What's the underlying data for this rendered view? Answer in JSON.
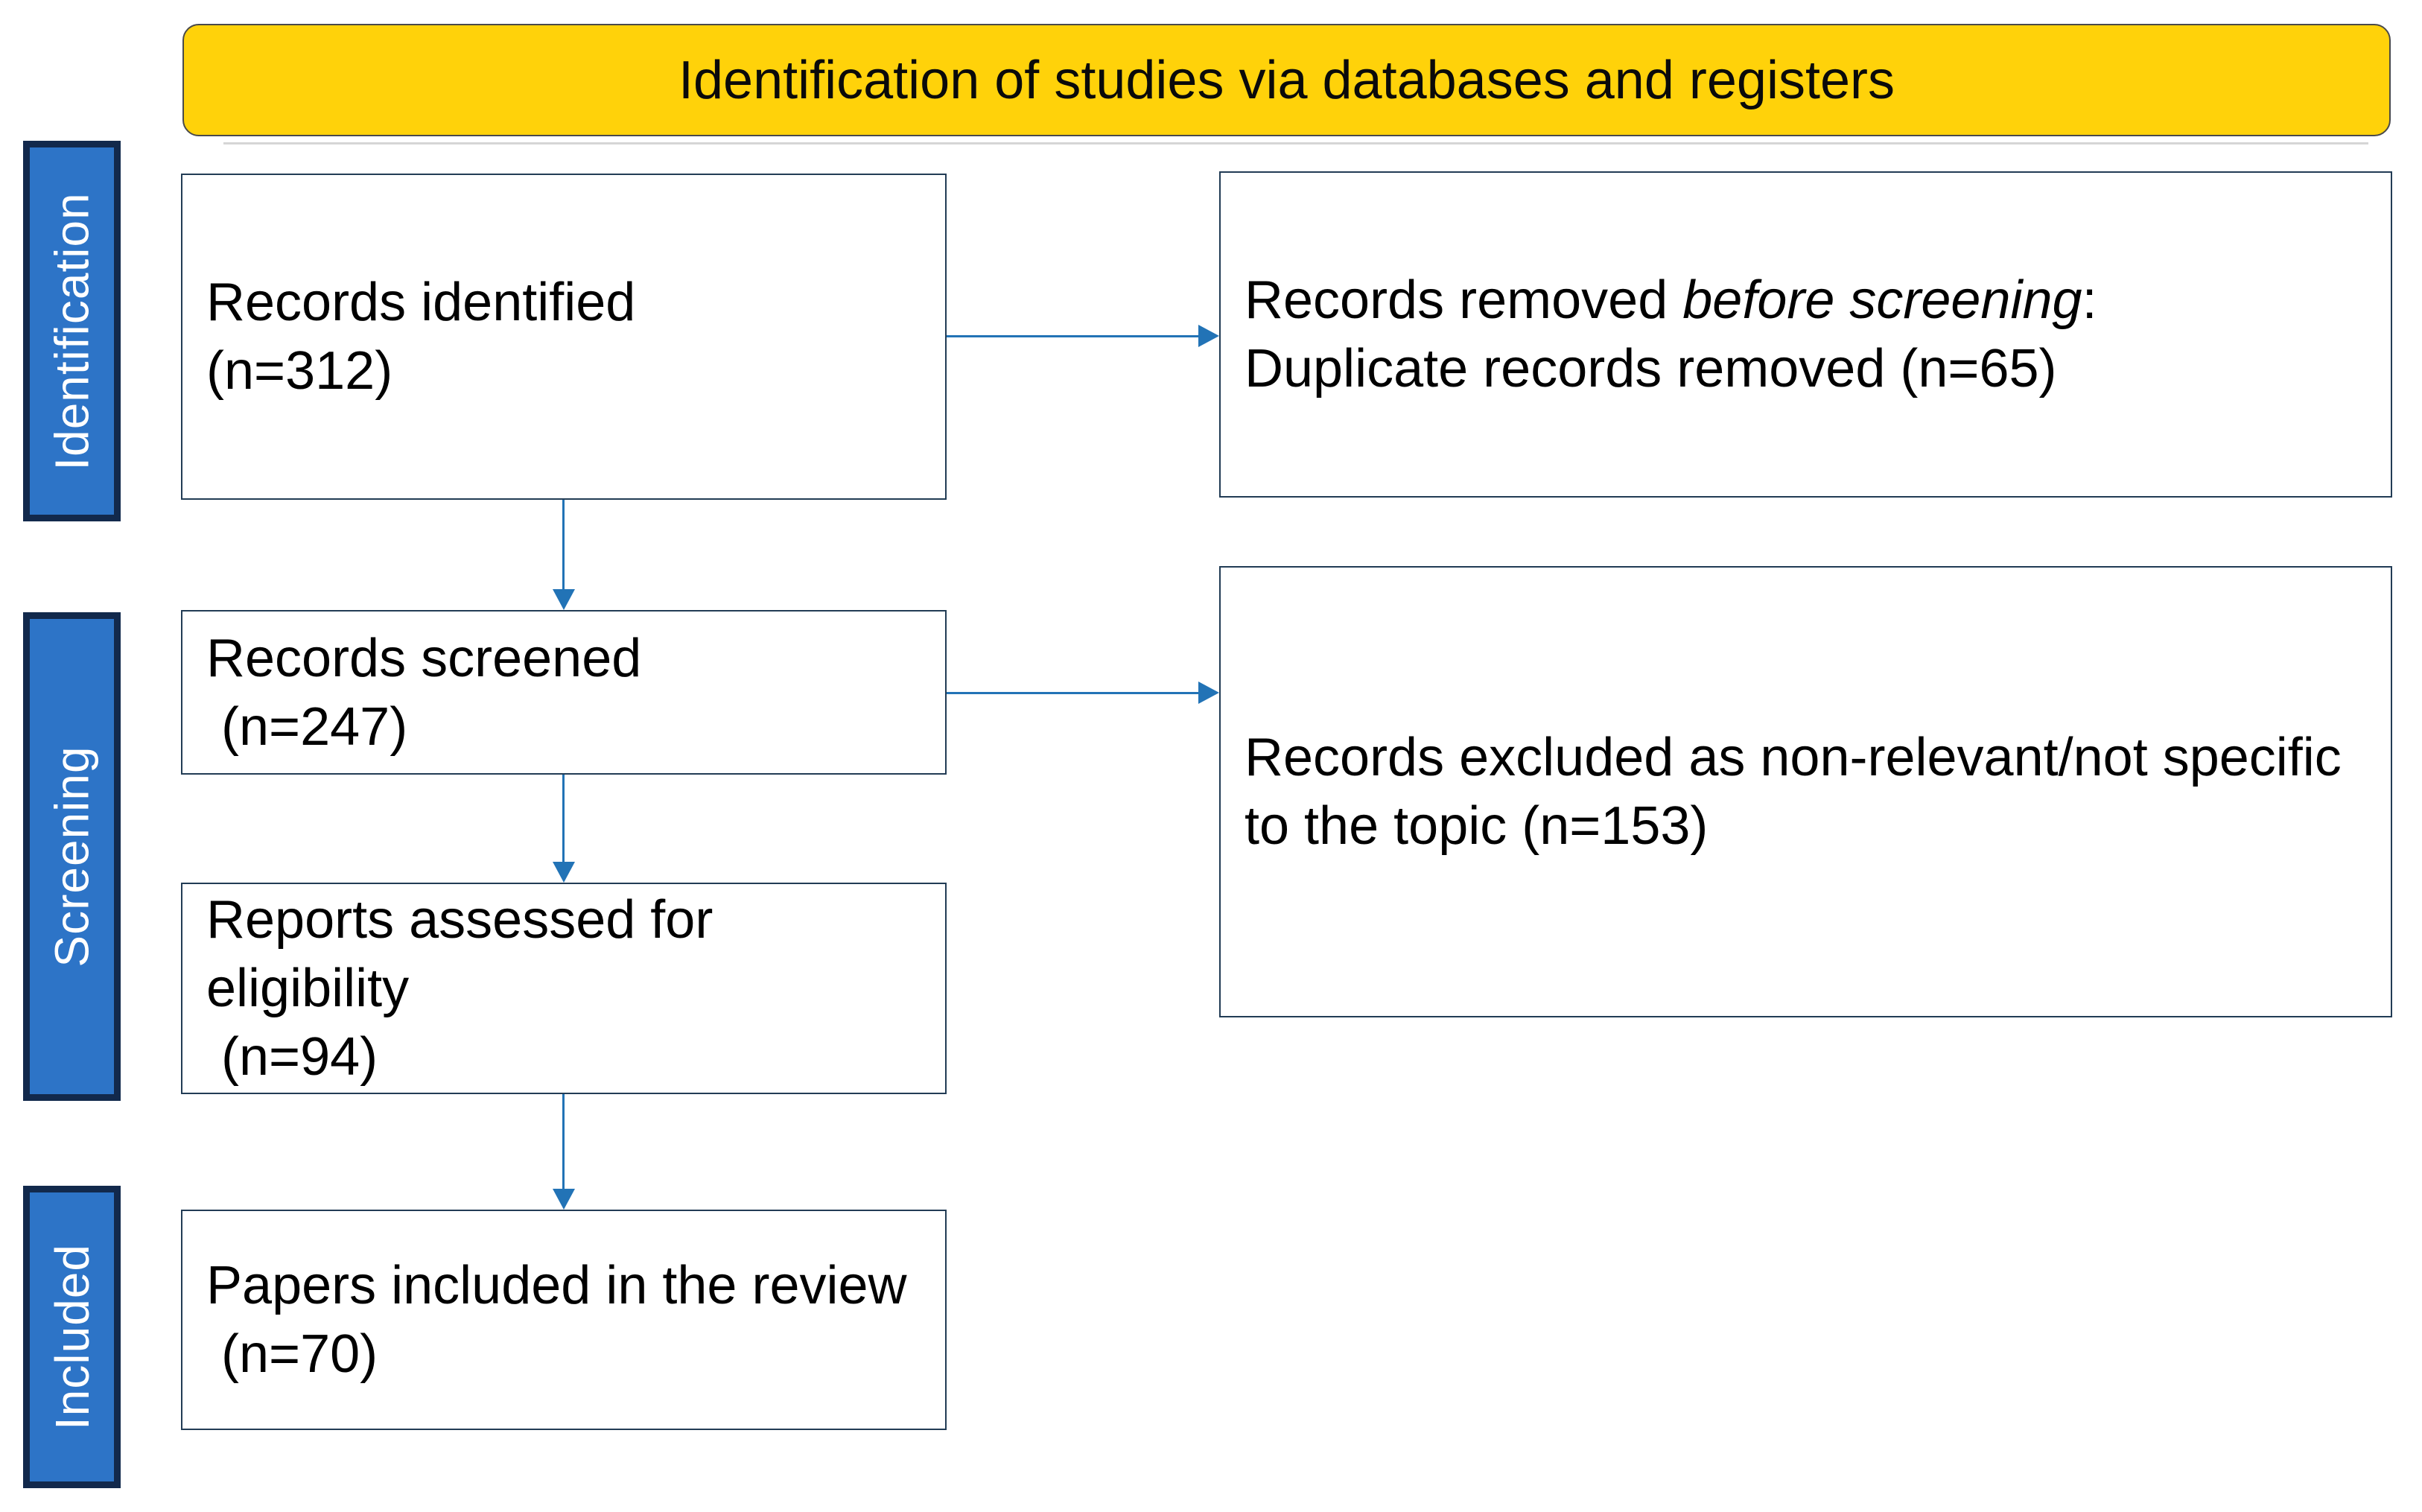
{
  "banner": {
    "title": "Identification of studies via databases and registers"
  },
  "sidebar": {
    "labels": [
      {
        "text": "Identification"
      },
      {
        "text": "Screening"
      },
      {
        "text": "Included"
      }
    ]
  },
  "boxes": {
    "records_identified": {
      "lines": [
        "Records identified",
        "(n=312)"
      ]
    },
    "records_removed": {
      "line1": {
        "prefix": "Records removed ",
        "italic": "before screening",
        "suffix": ":"
      },
      "line2": "Duplicate records removed (n=65)"
    },
    "records_screened": {
      "lines": [
        "Records screened",
        " (n=247)"
      ]
    },
    "records_excluded": {
      "lines": [
        "Records excluded as non-relevant/not specific",
        "to the topic (n=153)"
      ]
    },
    "reports_assessed": {
      "lines": [
        "Reports assessed for",
        "eligibility",
        " (n=94)"
      ]
    },
    "papers_included": {
      "lines": [
        "Papers included in the review",
        " (n=70)"
      ]
    }
  },
  "colors": {
    "banner-bg": "#FFD20A",
    "banner-border": "#4A4A4A",
    "side-fill": "#2D74C7",
    "side-border": "#12294C",
    "box-border": "#223C55",
    "arrow": "#2273B6",
    "text": "#000000"
  }
}
